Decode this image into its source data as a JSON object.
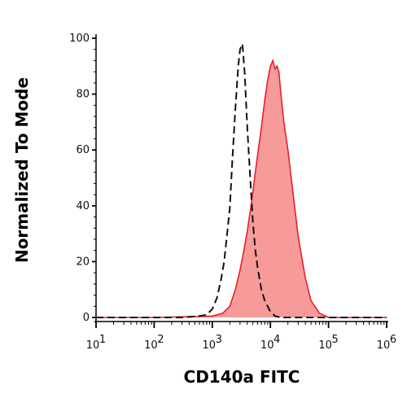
{
  "chart_data": {
    "type": "area",
    "xlabel": "CD140a FITC",
    "ylabel": "Normalized To Mode",
    "x_scale": "log",
    "xlim": [
      10,
      1000000
    ],
    "ylim": [
      0,
      100
    ],
    "y_ticks": [
      0,
      20,
      40,
      60,
      80,
      100
    ],
    "x_ticks": [
      {
        "base": "10",
        "exp": "1",
        "value": 10
      },
      {
        "base": "10",
        "exp": "2",
        "value": 100
      },
      {
        "base": "10",
        "exp": "3",
        "value": 1000
      },
      {
        "base": "10",
        "exp": "4",
        "value": 10000
      },
      {
        "base": "10",
        "exp": "5",
        "value": 100000
      },
      {
        "base": "10",
        "exp": "6",
        "value": 1000000
      }
    ],
    "grid": false,
    "series": [
      {
        "style": "filled",
        "color": "#e8212a",
        "fill": "#f79a9a",
        "x": [
          10,
          100,
          1000,
          1500,
          2000,
          2500,
          3000,
          3500,
          4000,
          4500,
          5000,
          5500,
          6000,
          7000,
          8000,
          9000,
          10000,
          11000,
          12000,
          13000,
          14000,
          15000,
          17000,
          20000,
          25000,
          30000,
          40000,
          50000,
          70000,
          100000,
          150000,
          200000,
          300000,
          500000,
          1000000
        ],
        "y": [
          0,
          0,
          0.5,
          1.5,
          4,
          10,
          17,
          24,
          31,
          38,
          45,
          52,
          58,
          68,
          78,
          85,
          90,
          92,
          89,
          90,
          88,
          81,
          70,
          60,
          43,
          29,
          14,
          6,
          1.5,
          0,
          0,
          0,
          0,
          0,
          0
        ]
      },
      {
        "style": "dashed",
        "color": "#111111",
        "x": [
          10,
          100,
          300,
          600,
          800,
          1000,
          1200,
          1400,
          1600,
          1800,
          2000,
          2200,
          2500,
          2800,
          3000,
          3300,
          3600,
          4000,
          4500,
          5000,
          5500,
          6000,
          7000,
          8000,
          10000,
          12000,
          15000,
          20000,
          50000,
          1000000
        ],
        "y": [
          0,
          0,
          0,
          0.5,
          1,
          3,
          7,
          13,
          20,
          30,
          39,
          55,
          75,
          90,
          96,
          98,
          88,
          68,
          50,
          34,
          24,
          18,
          10,
          6,
          2,
          0.5,
          0,
          0,
          0,
          0
        ]
      }
    ]
  }
}
